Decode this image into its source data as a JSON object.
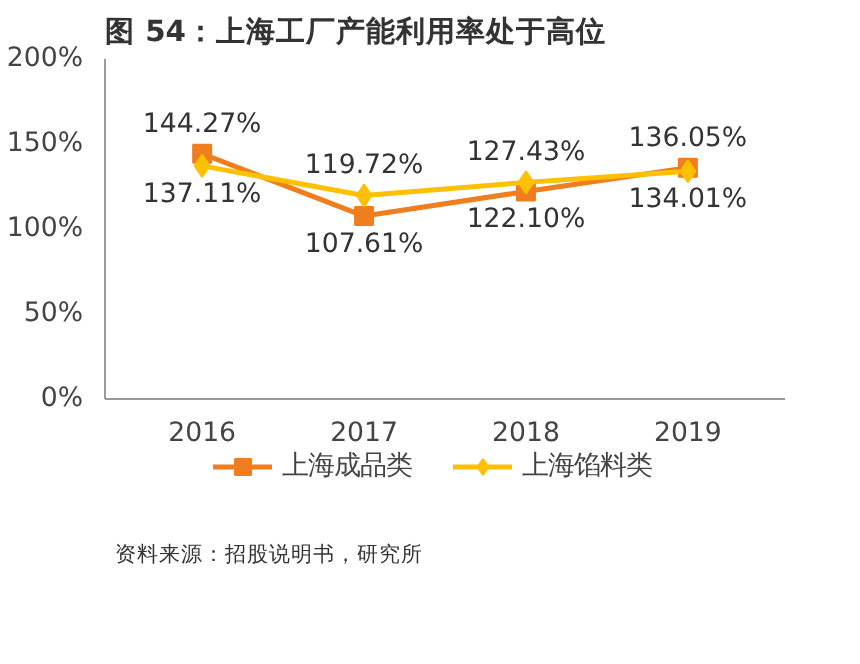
{
  "chart_data": {
    "type": "line",
    "title": "图 54：上海工厂产能利用率处于高位",
    "categories": [
      "2016",
      "2017",
      "2018",
      "2019"
    ],
    "series": [
      {
        "name": "上海成品类",
        "color": "#f07d1e",
        "marker": "square",
        "values": [
          144.27,
          107.61,
          122.1,
          136.05
        ],
        "value_labels": [
          "144.27%",
          "107.61%",
          "122.10%",
          "136.05%"
        ]
      },
      {
        "name": "上海馅料类",
        "color": "#ffc000",
        "marker": "diamond",
        "values": [
          137.11,
          119.72,
          127.43,
          134.01
        ],
        "value_labels": [
          "137.11%",
          "119.72%",
          "127.43%",
          "134.01%"
        ]
      }
    ],
    "ylim": [
      0,
      200
    ],
    "yticks": [
      {
        "value": 0,
        "label": "0%"
      },
      {
        "value": 50,
        "label": "50%"
      },
      {
        "value": 100,
        "label": "100%"
      },
      {
        "value": 150,
        "label": "150%"
      },
      {
        "value": 200,
        "label": "200%"
      }
    ],
    "grid": false,
    "legend": "bottom",
    "annotations": [
      "资料来源：招股说明书，研究所"
    ]
  }
}
